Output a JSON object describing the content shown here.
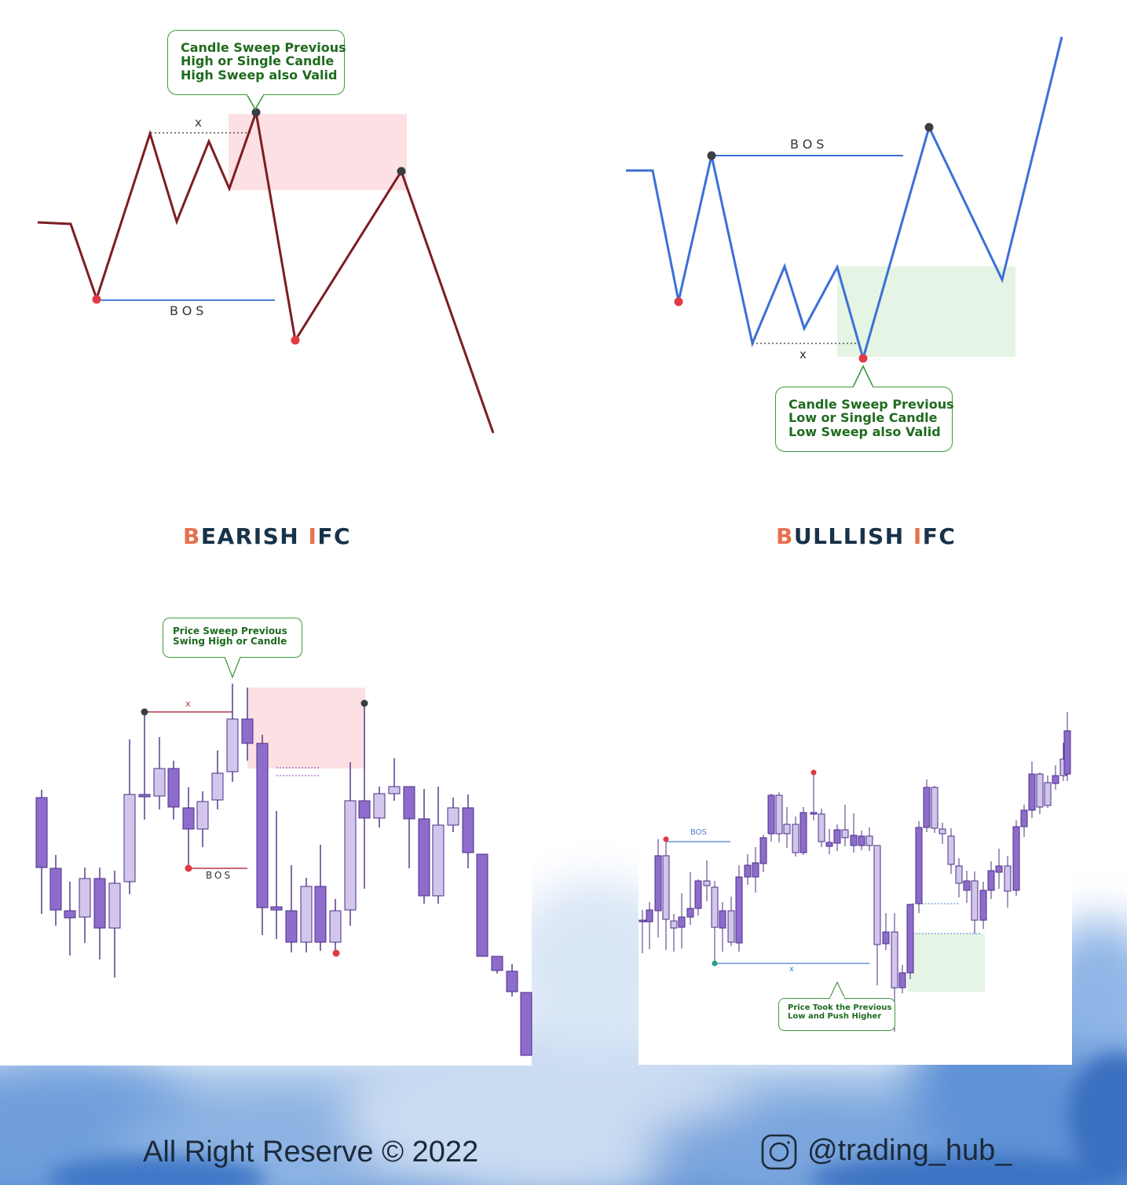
{
  "bearish_diagram": {
    "callout_lines": [
      "Candle Sweep Previous",
      "High or Single Candle",
      "High Sweep also Valid"
    ],
    "bos_label": "BOS",
    "x_label": "x",
    "line_color": "#7d1d22",
    "zone_color": "#fde0e3",
    "bos_line_color": "#4a7ed1"
  },
  "bullish_diagram": {
    "callout_lines": [
      "Candle Sweep Previous",
      "Low or Single Candle",
      "Low Sweep also Valid"
    ],
    "bos_label": "BOS",
    "x_label": "x",
    "line_color": "#3c6fd8",
    "zone_color": "#e5f4e4",
    "bos_line_color": "#3c6fd8"
  },
  "titles": {
    "bearish": {
      "accent1": "B",
      "part1": "EARISH ",
      "accent2": "I",
      "part2": "FC"
    },
    "bullish": {
      "accent1": "B",
      "part1": "ULLLISH ",
      "accent2": "I",
      "part2": "FC"
    }
  },
  "bearish_candles": {
    "callout_lines": [
      "Price Sweep Previous",
      "Swing High or Candle"
    ],
    "bos_label": "BOS",
    "x_label": "x",
    "candle_color": "#8e6ccc",
    "light_candle_color": "#d2c6ec"
  },
  "bullish_candles": {
    "callout_lines": [
      "Price Took the Previous",
      "Low and Push Higher"
    ],
    "bos_label": "BOS",
    "x_label": "x",
    "candle_color": "#8e6ccc",
    "light_candle_color": "#d2c6ec"
  },
  "footer": {
    "copyright": "All Right Reserve  © 2022",
    "handle": "@trading_hub_",
    "instagram_icon": "instagram-icon"
  },
  "colors": {
    "red_dot": "#e03a45",
    "dark_dot": "#3b3d44",
    "teal_dot": "#1f9e8a"
  }
}
